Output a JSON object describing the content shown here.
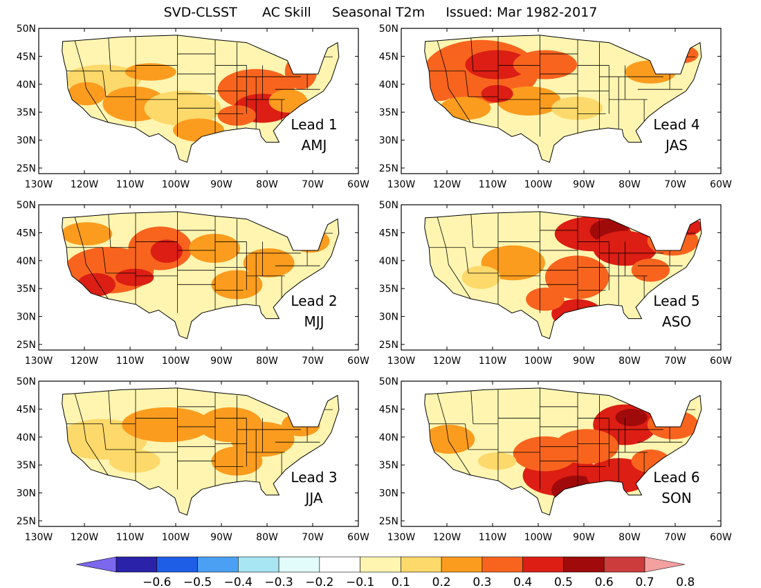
{
  "title": "SVD-CLSST      AC Skill     Seasonal T2m     Issued: Mar 1982-2017",
  "axes": {
    "lon_ticks": [
      "130W",
      "120W",
      "110W",
      "100W",
      "90W",
      "80W",
      "70W",
      "60W"
    ],
    "lon_values": [
      -130,
      -120,
      -110,
      -100,
      -90,
      -80,
      -70,
      -60
    ],
    "lat_ticks": [
      "50N",
      "45N",
      "40N",
      "35N",
      "30N",
      "25N"
    ],
    "lat_values": [
      50,
      45,
      40,
      35,
      30,
      25
    ],
    "lon_range": [
      -130,
      -60
    ],
    "lat_range": [
      24,
      50
    ]
  },
  "panels": [
    {
      "lead_label": "Lead 1",
      "season": "AMJ"
    },
    {
      "lead_label": "Lead 4",
      "season": "JAS"
    },
    {
      "lead_label": "Lead 2",
      "season": "MJJ"
    },
    {
      "lead_label": "Lead 5",
      "season": "ASO"
    },
    {
      "lead_label": "Lead 3",
      "season": "JJA"
    },
    {
      "lead_label": "Lead 6",
      "season": "SON"
    }
  ],
  "colorbar": {
    "labels": [
      "−0.6",
      "−0.5",
      "−0.4",
      "−0.3",
      "−0.2",
      "−0.1",
      "0.1",
      "0.2",
      "0.3",
      "0.4",
      "0.5",
      "0.6",
      "0.7",
      "0.8"
    ],
    "colors": [
      "#7b68ee",
      "#2a22a8",
      "#1e5ee6",
      "#4ba0f4",
      "#a8e6f4",
      "#e2fcfc",
      "#ffffff",
      "#fff5b0",
      "#fcd96a",
      "#fc9c1e",
      "#f8641e",
      "#dc1e14",
      "#a00a0a",
      "#cd3c3c",
      "#f4a0a0"
    ]
  },
  "map_colors": {
    "c1": "#fff5b0",
    "c2": "#fcd96a",
    "c3": "#fc9c1e",
    "c4": "#f8641e",
    "c5": "#dc1e14",
    "c6": "#a00a0a"
  }
}
